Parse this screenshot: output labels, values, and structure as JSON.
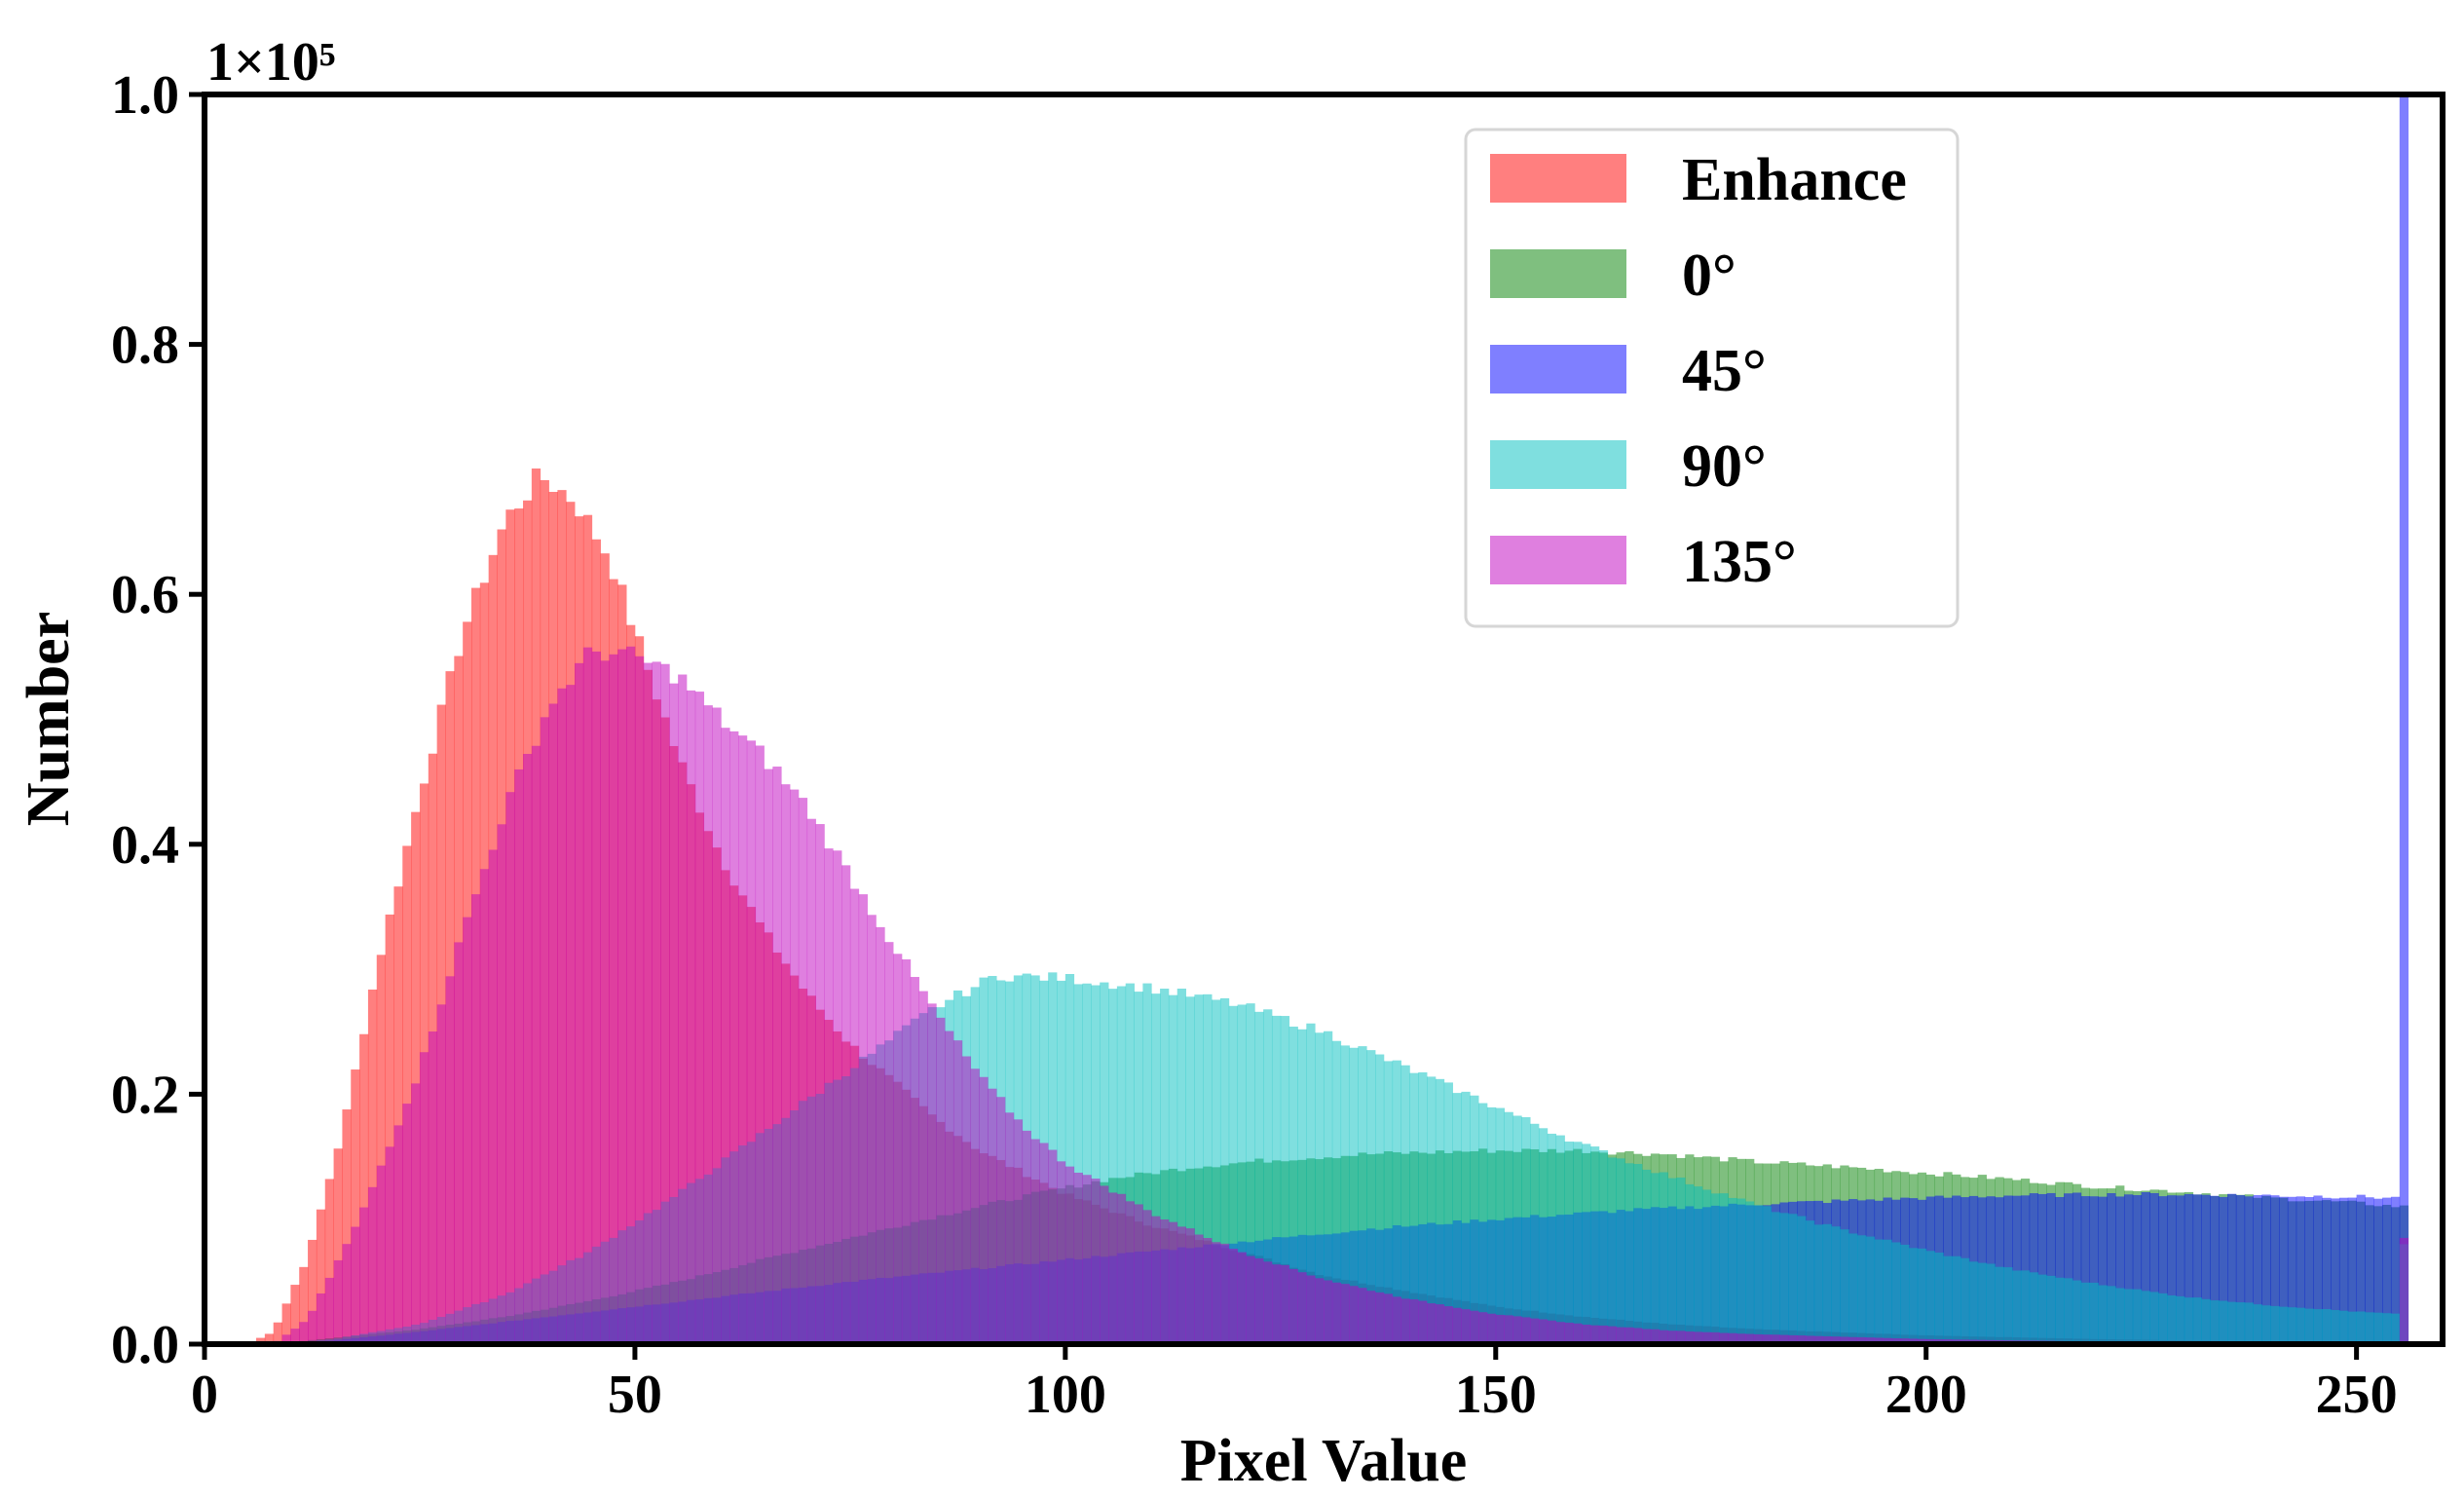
{
  "chart_data": {
    "type": "histogram",
    "title": "",
    "xlabel": "Pixel Value",
    "ylabel": "Number",
    "y_scale_label": "1×10⁵",
    "y_multiplier": 100000,
    "xlim": [
      0,
      260
    ],
    "ylim": [
      0,
      1.0
    ],
    "xticks": [
      0,
      50,
      100,
      150,
      200,
      250
    ],
    "xtick_labels": [
      "0",
      "50",
      "100",
      "150",
      "200",
      "250"
    ],
    "yticks": [
      0.0,
      0.2,
      0.4,
      0.6,
      0.8,
      1.0
    ],
    "ytick_labels": [
      "0.0",
      "0.2",
      "0.4",
      "0.6",
      "0.8",
      "1.0"
    ],
    "grid": false,
    "legend_position": "top-center-right",
    "bins": "one per pixel value 0-255",
    "series": [
      {
        "name": "Enhance",
        "color": "#ff0000",
        "opacity": 0.5,
        "distribution": "right-skewed, mode near 39",
        "control_points": [
          [
            0,
            0
          ],
          [
            5,
            0
          ],
          [
            8,
            0.01
          ],
          [
            12,
            0.07
          ],
          [
            16,
            0.17
          ],
          [
            20,
            0.3
          ],
          [
            25,
            0.44
          ],
          [
            30,
            0.57
          ],
          [
            35,
            0.66
          ],
          [
            39,
            0.695
          ],
          [
            43,
            0.675
          ],
          [
            47,
            0.63
          ],
          [
            50,
            0.57
          ],
          [
            55,
            0.47
          ],
          [
            60,
            0.39
          ],
          [
            65,
            0.33
          ],
          [
            70,
            0.28
          ],
          [
            75,
            0.24
          ],
          [
            80,
            0.21
          ],
          [
            85,
            0.18
          ],
          [
            90,
            0.155
          ],
          [
            100,
            0.12
          ],
          [
            110,
            0.095
          ],
          [
            120,
            0.075
          ],
          [
            130,
            0.055
          ],
          [
            140,
            0.042
          ],
          [
            150,
            0.03
          ],
          [
            160,
            0.022
          ],
          [
            170,
            0.016
          ],
          [
            180,
            0.012
          ],
          [
            200,
            0.007
          ],
          [
            220,
            0.004
          ],
          [
            240,
            0.002
          ],
          [
            255,
            0.001
          ]
        ],
        "spike_at_255": 0
      },
      {
        "name": "0°",
        "color": "#008000",
        "opacity": 0.5,
        "distribution": "broad, plateau near 150-175",
        "control_points": [
          [
            0,
            0
          ],
          [
            8,
            0
          ],
          [
            15,
            0.005
          ],
          [
            25,
            0.012
          ],
          [
            35,
            0.022
          ],
          [
            45,
            0.035
          ],
          [
            55,
            0.05
          ],
          [
            65,
            0.068
          ],
          [
            75,
            0.085
          ],
          [
            85,
            0.102
          ],
          [
            95,
            0.118
          ],
          [
            105,
            0.132
          ],
          [
            115,
            0.142
          ],
          [
            125,
            0.148
          ],
          [
            135,
            0.152
          ],
          [
            150,
            0.155
          ],
          [
            160,
            0.155
          ],
          [
            170,
            0.152
          ],
          [
            180,
            0.146
          ],
          [
            190,
            0.142
          ],
          [
            200,
            0.137
          ],
          [
            210,
            0.132
          ],
          [
            220,
            0.126
          ],
          [
            230,
            0.122
          ],
          [
            240,
            0.117
          ],
          [
            250,
            0.113
          ],
          [
            255,
            0.11
          ]
        ],
        "spike_at_255": 0
      },
      {
        "name": "45°",
        "color": "#0000ff",
        "opacity": 0.5,
        "distribution": "broad, rising to a plateau near 200-255",
        "control_points": [
          [
            0,
            0
          ],
          [
            8,
            0
          ],
          [
            15,
            0.003
          ],
          [
            25,
            0.01
          ],
          [
            35,
            0.018
          ],
          [
            45,
            0.026
          ],
          [
            55,
            0.034
          ],
          [
            65,
            0.042
          ],
          [
            75,
            0.05
          ],
          [
            85,
            0.057
          ],
          [
            95,
            0.064
          ],
          [
            105,
            0.071
          ],
          [
            115,
            0.078
          ],
          [
            125,
            0.085
          ],
          [
            135,
            0.092
          ],
          [
            150,
            0.1
          ],
          [
            165,
            0.107
          ],
          [
            180,
            0.112
          ],
          [
            195,
            0.116
          ],
          [
            210,
            0.119
          ],
          [
            225,
            0.12
          ],
          [
            240,
            0.119
          ],
          [
            250,
            0.118
          ],
          [
            255,
            0.117
          ]
        ],
        "spike_at_255": 1.0
      },
      {
        "name": "90°",
        "color": "#00bfbf",
        "opacity": 0.5,
        "distribution": "mode near 95-100",
        "control_points": [
          [
            0,
            0
          ],
          [
            8,
            0
          ],
          [
            15,
            0.004
          ],
          [
            25,
            0.016
          ],
          [
            35,
            0.04
          ],
          [
            45,
            0.075
          ],
          [
            55,
            0.12
          ],
          [
            65,
            0.17
          ],
          [
            75,
            0.22
          ],
          [
            85,
            0.27
          ],
          [
            92,
            0.295
          ],
          [
            100,
            0.293
          ],
          [
            110,
            0.285
          ],
          [
            120,
            0.272
          ],
          [
            130,
            0.25
          ],
          [
            140,
            0.22
          ],
          [
            150,
            0.19
          ],
          [
            160,
            0.16
          ],
          [
            170,
            0.135
          ],
          [
            180,
            0.112
          ],
          [
            190,
            0.092
          ],
          [
            200,
            0.075
          ],
          [
            210,
            0.06
          ],
          [
            220,
            0.048
          ],
          [
            230,
            0.038
          ],
          [
            240,
            0.031
          ],
          [
            250,
            0.026
          ],
          [
            255,
            0.024
          ]
        ],
        "spike_at_255": 0.08
      },
      {
        "name": "135°",
        "color": "#bf00bf",
        "opacity": 0.5,
        "distribution": "right-skewed, mode near 47",
        "control_points": [
          [
            0,
            0
          ],
          [
            8,
            0
          ],
          [
            12,
            0.02
          ],
          [
            18,
            0.1
          ],
          [
            25,
            0.22
          ],
          [
            30,
            0.33
          ],
          [
            35,
            0.43
          ],
          [
            40,
            0.51
          ],
          [
            45,
            0.555
          ],
          [
            50,
            0.55
          ],
          [
            55,
            0.535
          ],
          [
            60,
            0.5
          ],
          [
            65,
            0.47
          ],
          [
            70,
            0.43
          ],
          [
            75,
            0.375
          ],
          [
            80,
            0.32
          ],
          [
            85,
            0.265
          ],
          [
            90,
            0.215
          ],
          [
            95,
            0.175
          ],
          [
            100,
            0.145
          ],
          [
            110,
            0.105
          ],
          [
            120,
            0.075
          ],
          [
            130,
            0.052
          ],
          [
            140,
            0.036
          ],
          [
            150,
            0.024
          ],
          [
            160,
            0.016
          ],
          [
            170,
            0.011
          ],
          [
            180,
            0.008
          ],
          [
            200,
            0.004
          ],
          [
            220,
            0.002
          ],
          [
            240,
            0.001
          ],
          [
            255,
            0.001
          ]
        ],
        "spike_at_255": 0.085
      }
    ]
  }
}
